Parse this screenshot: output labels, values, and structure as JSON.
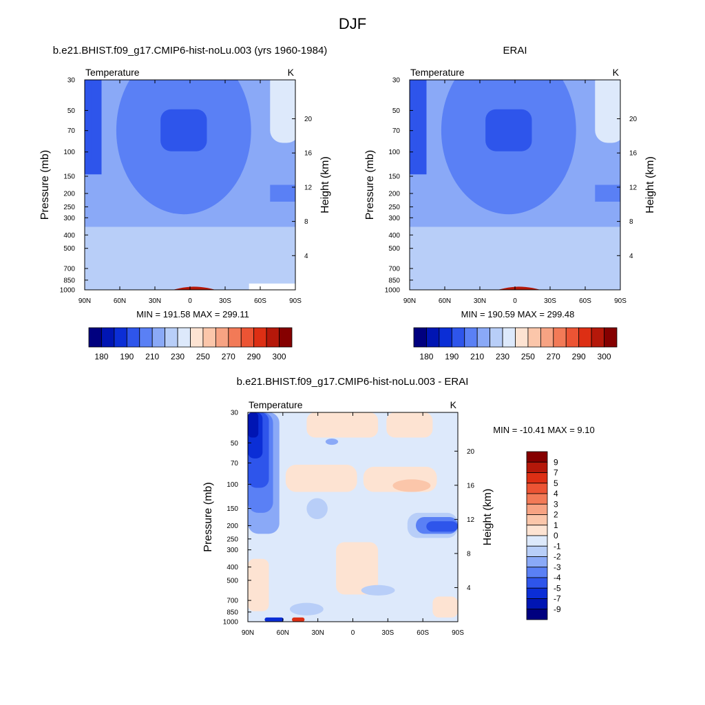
{
  "figure_title": "DJF",
  "colors": {
    "abs": [
      "#00007f",
      "#0015b3",
      "#0b2ed6",
      "#2e55eb",
      "#5a80f5",
      "#8aa9f7",
      "#b8cef8",
      "#dde9fb",
      "#fde3d2",
      "#fbc6aa",
      "#f7a383",
      "#f27a57",
      "#ec5434",
      "#dd2f14",
      "#b5180a",
      "#850000"
    ],
    "diff": [
      "#00007f",
      "#0015b3",
      "#0b2ed6",
      "#2e55eb",
      "#5a80f5",
      "#8aa9f7",
      "#b8cef8",
      "#dde9fb",
      "#fde3d2",
      "#fbc6aa",
      "#f7a383",
      "#f27a57",
      "#ec5434",
      "#dd2f14",
      "#b5180a",
      "#850000"
    ]
  },
  "chart_data": [
    {
      "type": "heatmap",
      "title": "b.e21.BHIST.f09_g17.CMIP6-hist-noLu.003 (yrs 1960-1984)",
      "left_label": "Temperature",
      "right_label": "K",
      "xlabel": "",
      "ylabel": "Pressure (mb)",
      "y2label": "Height (km)",
      "x_ticks": [
        "90N",
        "60N",
        "30N",
        "0",
        "30S",
        "60S",
        "90S"
      ],
      "y_ticks": [
        "30",
        "50",
        "70",
        "100",
        "150",
        "200",
        "250",
        "300",
        "400",
        "500",
        "700",
        "850",
        "1000"
      ],
      "y2_ticks": [
        "20",
        "16",
        "12",
        "8",
        "4"
      ],
      "ylim": [
        1000,
        30
      ],
      "stats": "MIN = 191.58  MAX = 299.11",
      "min": 191.58,
      "max": 299.11,
      "colorbar_labels": [
        "180",
        "190",
        "210",
        "230",
        "250",
        "270",
        "290",
        "300"
      ]
    },
    {
      "type": "heatmap",
      "title": "ERAI",
      "left_label": "Temperature",
      "right_label": "K",
      "xlabel": "",
      "ylabel": "Pressure (mb)",
      "y2label": "Height (km)",
      "x_ticks": [
        "90N",
        "60N",
        "30N",
        "0",
        "30S",
        "60S",
        "90S"
      ],
      "y_ticks": [
        "30",
        "50",
        "70",
        "100",
        "150",
        "200",
        "250",
        "300",
        "400",
        "500",
        "700",
        "850",
        "1000"
      ],
      "y2_ticks": [
        "20",
        "16",
        "12",
        "8",
        "4"
      ],
      "ylim": [
        1000,
        30
      ],
      "stats": "MIN = 190.59  MAX = 299.48",
      "min": 190.59,
      "max": 299.48,
      "colorbar_labels": [
        "180",
        "190",
        "210",
        "230",
        "250",
        "270",
        "290",
        "300"
      ]
    },
    {
      "type": "heatmap",
      "title": "b.e21.BHIST.f09_g17.CMIP6-hist-noLu.003 - ERAI",
      "left_label": "Temperature",
      "right_label": "K",
      "xlabel": "",
      "ylabel": "Pressure (mb)",
      "y2label": "Height (km)",
      "x_ticks": [
        "90N",
        "60N",
        "30N",
        "0",
        "30S",
        "60S",
        "90S"
      ],
      "y_ticks": [
        "30",
        "50",
        "70",
        "100",
        "150",
        "200",
        "250",
        "300",
        "400",
        "500",
        "700",
        "850",
        "1000"
      ],
      "y2_ticks": [
        "20",
        "16",
        "12",
        "8",
        "4"
      ],
      "ylim": [
        1000,
        30
      ],
      "stats": "MIN = -10.41  MAX =   9.10",
      "min": -10.41,
      "max": 9.1,
      "colorbar_labels": [
        "9",
        "7",
        "5",
        "4",
        "3",
        "2",
        "1",
        "0",
        "-1",
        "-2",
        "-3",
        "-4",
        "-5",
        "-7",
        "-9"
      ]
    }
  ]
}
